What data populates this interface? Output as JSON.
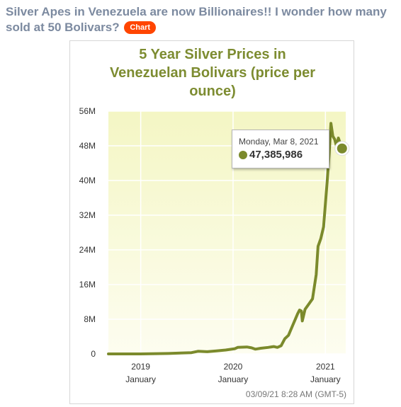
{
  "post": {
    "title": "Silver Apes in Venezuela are now Billionaires!! I wonder how many sold at 50 Bolivars?",
    "flair": "Chart"
  },
  "colors": {
    "line": "#7b8a2c",
    "title": "#7d8c31",
    "flair_bg": "#ff4500",
    "plot_bg_top": "#f4f6c4",
    "plot_bg_bottom": "#fdfdf0"
  },
  "tooltip": {
    "date": "Monday, Mar 8, 2021",
    "value": "47,385,986"
  },
  "timestamp": "03/09/21 8:28 AM (GMT-5)",
  "chart_data": {
    "type": "line",
    "title_lines": [
      "5 Year Silver Prices in",
      "Venezuelan Bolivars (price per",
      "ounce)"
    ],
    "y_ticks": [
      {
        "value": 0,
        "label": "0"
      },
      {
        "value": 8000000,
        "label": "8M"
      },
      {
        "value": 16000000,
        "label": "16M"
      },
      {
        "value": 24000000,
        "label": "24M"
      },
      {
        "value": 32000000,
        "label": "32M"
      },
      {
        "value": 40000000,
        "label": "40M"
      },
      {
        "value": 48000000,
        "label": "48M"
      },
      {
        "value": 56000000,
        "label": "56M"
      }
    ],
    "x_ticks": [
      {
        "value": 2019.0,
        "year": "2019",
        "month": "January"
      },
      {
        "value": 2020.0,
        "year": "2020",
        "month": "January"
      },
      {
        "value": 2021.0,
        "year": "2021",
        "month": "January"
      }
    ],
    "xlim": [
      2018.65,
      2021.22
    ],
    "ylim": [
      0,
      56000000
    ],
    "grid": true,
    "series": [
      {
        "x": [
          2018.65,
          2019.0,
          2019.3,
          2019.55,
          2019.62,
          2019.72,
          2019.82,
          2019.92,
          2020.02,
          2020.05,
          2020.15,
          2020.2,
          2020.24,
          2020.3,
          2020.38,
          2020.44,
          2020.48,
          2020.52,
          2020.56,
          2020.6,
          2020.64,
          2020.68,
          2020.7,
          2020.72,
          2020.74,
          2020.75,
          2020.78,
          2020.82,
          2020.86,
          2020.9,
          2020.92,
          2020.95,
          2020.98,
          2021.02,
          2021.04,
          2021.06,
          2021.08,
          2021.1,
          2021.12,
          2021.14,
          2021.18
        ],
        "y": [
          0,
          0,
          100000,
          300000,
          600000,
          500000,
          700000,
          900000,
          1200000,
          1500000,
          1600000,
          1400000,
          1100000,
          1300000,
          1500000,
          1700000,
          1500000,
          1900000,
          3500000,
          4300000,
          6300000,
          8300000,
          9300000,
          10100000,
          9900000,
          7600000,
          10300000,
          11500000,
          12700000,
          18300000,
          24800000,
          26600000,
          29300000,
          40000000,
          46000000,
          53200000,
          50200000,
          49500000,
          47900000,
          49800000,
          47385986
        ]
      }
    ]
  }
}
